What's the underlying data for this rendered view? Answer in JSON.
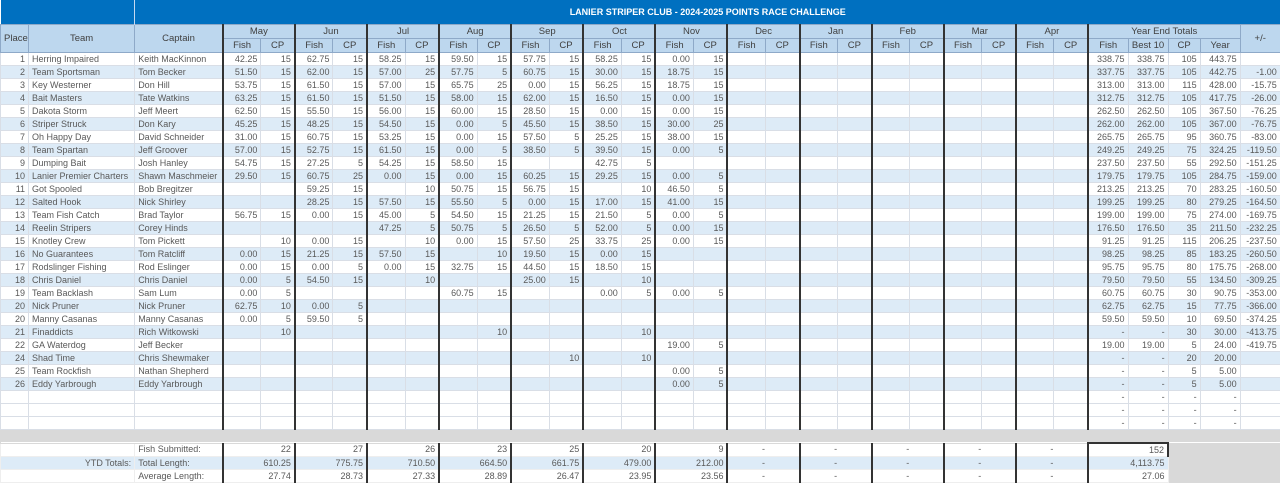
{
  "title": "LANIER STRIPER CLUB - 2024-2025 POINTS RACE CHALLENGE",
  "headers": {
    "place": "Place",
    "team": "Team",
    "captain": "Captain",
    "fish": "Fish",
    "cp": "CP",
    "totals": "Year End Totals",
    "best10": "Best 10",
    "year": "Year",
    "diff": "+/-"
  },
  "months": [
    "May",
    "Jun",
    "Jul",
    "Aug",
    "Sep",
    "Oct",
    "Nov",
    "Dec",
    "Jan",
    "Feb",
    "Mar",
    "Apr"
  ],
  "rows": [
    {
      "place": "1",
      "team": "Herring Impaired",
      "captain": "Keith MacKinnon",
      "m": [
        [
          "42.25",
          "15"
        ],
        [
          "62.75",
          "15"
        ],
        [
          "58.25",
          "15"
        ],
        [
          "59.50",
          "15"
        ],
        [
          "57.75",
          "15"
        ],
        [
          "58.25",
          "15"
        ],
        [
          "0.00",
          "15"
        ]
      ],
      "t": [
        "338.75",
        "338.75",
        "105",
        "443.75"
      ],
      "diff": ""
    },
    {
      "place": "2",
      "team": "Team Sportsman",
      "captain": "Tom Becker",
      "m": [
        [
          "51.50",
          "15"
        ],
        [
          "62.00",
          "15"
        ],
        [
          "57.00",
          "25"
        ],
        [
          "57.75",
          "5"
        ],
        [
          "60.75",
          "15"
        ],
        [
          "30.00",
          "15"
        ],
        [
          "18.75",
          "15"
        ]
      ],
      "t": [
        "337.75",
        "337.75",
        "105",
        "442.75"
      ],
      "diff": "-1.00"
    },
    {
      "place": "3",
      "team": "Key Westerner",
      "captain": "Don Hill",
      "m": [
        [
          "53.75",
          "15"
        ],
        [
          "61.50",
          "15"
        ],
        [
          "57.00",
          "15"
        ],
        [
          "65.75",
          "25"
        ],
        [
          "0.00",
          "15"
        ],
        [
          "56.25",
          "15"
        ],
        [
          "18.75",
          "15"
        ]
      ],
      "t": [
        "313.00",
        "313.00",
        "115",
        "428.00"
      ],
      "diff": "-15.75"
    },
    {
      "place": "4",
      "team": "Bait Masters",
      "captain": "Tate Watkins",
      "m": [
        [
          "63.25",
          "15"
        ],
        [
          "61.50",
          "15"
        ],
        [
          "51.50",
          "15"
        ],
        [
          "58.00",
          "15"
        ],
        [
          "62.00",
          "15"
        ],
        [
          "16.50",
          "15"
        ],
        [
          "0.00",
          "15"
        ]
      ],
      "t": [
        "312.75",
        "312.75",
        "105",
        "417.75"
      ],
      "diff": "-26.00"
    },
    {
      "place": "5",
      "team": "Dakota Storm",
      "captain": "Jeff Meert",
      "m": [
        [
          "62.50",
          "15"
        ],
        [
          "55.50",
          "15"
        ],
        [
          "56.00",
          "15"
        ],
        [
          "60.00",
          "15"
        ],
        [
          "28.50",
          "15"
        ],
        [
          "0.00",
          "15"
        ],
        [
          "0.00",
          "15"
        ]
      ],
      "t": [
        "262.50",
        "262.50",
        "105",
        "367.50"
      ],
      "diff": "-76.25"
    },
    {
      "place": "6",
      "team": "Striper Struck",
      "captain": "Don Kary",
      "m": [
        [
          "45.25",
          "15"
        ],
        [
          "48.25",
          "15"
        ],
        [
          "54.50",
          "15"
        ],
        [
          "0.00",
          "5"
        ],
        [
          "45.50",
          "15"
        ],
        [
          "38.50",
          "15"
        ],
        [
          "30.00",
          "25"
        ]
      ],
      "t": [
        "262.00",
        "262.00",
        "105",
        "367.00"
      ],
      "diff": "-76.75"
    },
    {
      "place": "7",
      "team": "Oh Happy Day",
      "captain": "David Schneider",
      "m": [
        [
          "31.00",
          "15"
        ],
        [
          "60.75",
          "15"
        ],
        [
          "53.25",
          "15"
        ],
        [
          "0.00",
          "15"
        ],
        [
          "57.50",
          "5"
        ],
        [
          "25.25",
          "15"
        ],
        [
          "38.00",
          "15"
        ]
      ],
      "t": [
        "265.75",
        "265.75",
        "95",
        "360.75"
      ],
      "diff": "-83.00"
    },
    {
      "place": "8",
      "team": "Team Spartan",
      "captain": "Jeff Groover",
      "m": [
        [
          "57.00",
          "15"
        ],
        [
          "52.75",
          "15"
        ],
        [
          "61.50",
          "15"
        ],
        [
          "0.00",
          "5"
        ],
        [
          "38.50",
          "5"
        ],
        [
          "39.50",
          "15"
        ],
        [
          "0.00",
          "5"
        ]
      ],
      "t": [
        "249.25",
        "249.25",
        "75",
        "324.25"
      ],
      "diff": "-119.50"
    },
    {
      "place": "9",
      "team": "Dumping Bait",
      "captain": "Josh Hanley",
      "m": [
        [
          "54.75",
          "15"
        ],
        [
          "27.25",
          "5"
        ],
        [
          "54.25",
          "15"
        ],
        [
          "58.50",
          "15"
        ],
        [
          "",
          ""
        ],
        [
          "42.75",
          "5"
        ],
        [
          "",
          ""
        ]
      ],
      "t": [
        "237.50",
        "237.50",
        "55",
        "292.50"
      ],
      "diff": "-151.25"
    },
    {
      "place": "10",
      "team": "Lanier Premier Charters",
      "captain": "Shawn Maschmeier",
      "m": [
        [
          "29.50",
          "15"
        ],
        [
          "60.75",
          "25"
        ],
        [
          "0.00",
          "15"
        ],
        [
          "0.00",
          "15"
        ],
        [
          "60.25",
          "15"
        ],
        [
          "29.25",
          "15"
        ],
        [
          "0.00",
          "5"
        ]
      ],
      "t": [
        "179.75",
        "179.75",
        "105",
        "284.75"
      ],
      "diff": "-159.00"
    },
    {
      "place": "11",
      "team": "Got Spooled",
      "captain": "Bob Bregitzer",
      "m": [
        [
          "",
          ""
        ],
        [
          "59.25",
          "15"
        ],
        [
          "",
          "10"
        ],
        [
          "50.75",
          "15"
        ],
        [
          "56.75",
          "15"
        ],
        [
          "",
          "10"
        ],
        [
          "46.50",
          "5"
        ]
      ],
      "t": [
        "213.25",
        "213.25",
        "70",
        "283.25"
      ],
      "diff": "-160.50"
    },
    {
      "place": "12",
      "team": "Salted Hook",
      "captain": "Nick Shirley",
      "m": [
        [
          "",
          ""
        ],
        [
          "28.25",
          "15"
        ],
        [
          "57.50",
          "15"
        ],
        [
          "55.50",
          "5"
        ],
        [
          "0.00",
          "15"
        ],
        [
          "17.00",
          "15"
        ],
        [
          "41.00",
          "15"
        ]
      ],
      "t": [
        "199.25",
        "199.25",
        "80",
        "279.25"
      ],
      "diff": "-164.50"
    },
    {
      "place": "13",
      "team": "Team Fish Catch",
      "captain": "Brad Taylor",
      "m": [
        [
          "56.75",
          "15"
        ],
        [
          "0.00",
          "15"
        ],
        [
          "45.00",
          "5"
        ],
        [
          "54.50",
          "15"
        ],
        [
          "21.25",
          "15"
        ],
        [
          "21.50",
          "5"
        ],
        [
          "0.00",
          "5"
        ]
      ],
      "t": [
        "199.00",
        "199.00",
        "75",
        "274.00"
      ],
      "diff": "-169.75"
    },
    {
      "place": "14",
      "team": "Reelin Stripers",
      "captain": "Corey Hinds",
      "m": [
        [
          "",
          ""
        ],
        [
          "",
          ""
        ],
        [
          "47.25",
          "5"
        ],
        [
          "50.75",
          "5"
        ],
        [
          "26.50",
          "5"
        ],
        [
          "52.00",
          "5"
        ],
        [
          "0.00",
          "15"
        ]
      ],
      "t": [
        "176.50",
        "176.50",
        "35",
        "211.50"
      ],
      "diff": "-232.25"
    },
    {
      "place": "15",
      "team": "Knotley Crew",
      "captain": "Tom Pickett",
      "m": [
        [
          "",
          "10"
        ],
        [
          "0.00",
          "15"
        ],
        [
          "",
          "10"
        ],
        [
          "0.00",
          "15"
        ],
        [
          "57.50",
          "25"
        ],
        [
          "33.75",
          "25"
        ],
        [
          "0.00",
          "15"
        ]
      ],
      "t": [
        "91.25",
        "91.25",
        "115",
        "206.25"
      ],
      "diff": "-237.50"
    },
    {
      "place": "16",
      "team": "No Guarantees",
      "captain": "Tom Ratcliff",
      "m": [
        [
          "0.00",
          "15"
        ],
        [
          "21.25",
          "15"
        ],
        [
          "57.50",
          "15"
        ],
        [
          "",
          "10"
        ],
        [
          "19.50",
          "15"
        ],
        [
          "0.00",
          "15"
        ],
        [
          "",
          ""
        ]
      ],
      "t": [
        "98.25",
        "98.25",
        "85",
        "183.25"
      ],
      "diff": "-260.50"
    },
    {
      "place": "17",
      "team": "Rodslinger Fishing",
      "captain": "Rod Eslinger",
      "m": [
        [
          "0.00",
          "15"
        ],
        [
          "0.00",
          "5"
        ],
        [
          "0.00",
          "15"
        ],
        [
          "32.75",
          "15"
        ],
        [
          "44.50",
          "15"
        ],
        [
          "18.50",
          "15"
        ],
        [
          "",
          ""
        ]
      ],
      "t": [
        "95.75",
        "95.75",
        "80",
        "175.75"
      ],
      "diff": "-268.00"
    },
    {
      "place": "18",
      "team": "Chris Daniel",
      "captain": "Chris Daniel",
      "m": [
        [
          "0.00",
          "5"
        ],
        [
          "54.50",
          "15"
        ],
        [
          "",
          "10"
        ],
        [
          "",
          ""
        ],
        [
          "25.00",
          "15"
        ],
        [
          "",
          "10"
        ],
        [
          "",
          ""
        ]
      ],
      "t": [
        "79.50",
        "79.50",
        "55",
        "134.50"
      ],
      "diff": "-309.25"
    },
    {
      "place": "19",
      "team": "Team Backlash",
      "captain": "Sam Lum",
      "m": [
        [
          "0.00",
          "5"
        ],
        [
          "",
          ""
        ],
        [
          "",
          ""
        ],
        [
          "60.75",
          "15"
        ],
        [
          "",
          ""
        ],
        [
          "0.00",
          "5"
        ],
        [
          "0.00",
          "5"
        ]
      ],
      "t": [
        "60.75",
        "60.75",
        "30",
        "90.75"
      ],
      "diff": "-353.00"
    },
    {
      "place": "20",
      "team": "Nick Pruner",
      "captain": "Nick Pruner",
      "m": [
        [
          "62.75",
          "10"
        ],
        [
          "0.00",
          "5"
        ],
        [
          "",
          ""
        ],
        [
          "",
          ""
        ],
        [
          "",
          ""
        ],
        [
          "",
          ""
        ],
        [
          "",
          ""
        ]
      ],
      "t": [
        "62.75",
        "62.75",
        "15",
        "77.75"
      ],
      "diff": "-366.00"
    },
    {
      "place": "20",
      "team": "Manny Casanas",
      "captain": "Manny Casanas",
      "m": [
        [
          "0.00",
          "5"
        ],
        [
          "59.50",
          "5"
        ],
        [
          "",
          ""
        ],
        [
          "",
          ""
        ],
        [
          "",
          ""
        ],
        [
          "",
          ""
        ],
        [
          "",
          ""
        ]
      ],
      "t": [
        "59.50",
        "59.50",
        "10",
        "69.50"
      ],
      "diff": "-374.25"
    },
    {
      "place": "21",
      "team": "Finaddicts",
      "captain": "Rich Witkowski",
      "m": [
        [
          "",
          "10"
        ],
        [
          "",
          ""
        ],
        [
          "",
          ""
        ],
        [
          "",
          "10"
        ],
        [
          "",
          ""
        ],
        [
          "",
          "10"
        ],
        [
          "",
          ""
        ]
      ],
      "t": [
        "-",
        "-",
        "30",
        "30.00"
      ],
      "diff": "-413.75"
    },
    {
      "place": "22",
      "team": "GA Waterdog",
      "captain": "Jeff Becker",
      "m": [
        [
          "",
          ""
        ],
        [
          "",
          ""
        ],
        [
          "",
          ""
        ],
        [
          "",
          ""
        ],
        [
          "",
          ""
        ],
        [
          "",
          ""
        ],
        [
          "19.00",
          "5"
        ]
      ],
      "t": [
        "19.00",
        "19.00",
        "5",
        "24.00"
      ],
      "diff": "-419.75"
    },
    {
      "place": "24",
      "team": "Shad Time",
      "captain": "Chris Shewmaker",
      "m": [
        [
          "",
          ""
        ],
        [
          "",
          ""
        ],
        [
          "",
          ""
        ],
        [
          "",
          ""
        ],
        [
          "",
          "10"
        ],
        [
          "",
          "10"
        ],
        [
          "",
          ""
        ]
      ],
      "t": [
        "-",
        "-",
        "20",
        "20.00"
      ],
      "diff": ""
    },
    {
      "place": "25",
      "team": "Team Rockfish",
      "captain": "Nathan Shepherd",
      "m": [
        [
          "",
          ""
        ],
        [
          "",
          ""
        ],
        [
          "",
          ""
        ],
        [
          "",
          ""
        ],
        [
          "",
          ""
        ],
        [
          "",
          ""
        ],
        [
          "0.00",
          "5"
        ]
      ],
      "t": [
        "-",
        "-",
        "5",
        "5.00"
      ],
      "diff": ""
    },
    {
      "place": "26",
      "team": "Eddy Yarbrough",
      "captain": "Eddy Yarbrough",
      "m": [
        [
          "",
          ""
        ],
        [
          "",
          ""
        ],
        [
          "",
          ""
        ],
        [
          "",
          ""
        ],
        [
          "",
          ""
        ],
        [
          "",
          ""
        ],
        [
          "0.00",
          "5"
        ]
      ],
      "t": [
        "-",
        "-",
        "5",
        "5.00"
      ],
      "diff": ""
    }
  ],
  "empty_totals": [
    "-",
    "-",
    "-",
    "-"
  ],
  "footer": {
    "label": "YTD Totals:",
    "rows": [
      {
        "label": "Fish Submitted:",
        "values": [
          "22",
          "27",
          "26",
          "23",
          "25",
          "20",
          "9",
          "-",
          "-",
          "-",
          "-",
          "-"
        ],
        "total": "152"
      },
      {
        "label": "Total Length:",
        "values": [
          "610.25",
          "775.75",
          "710.50",
          "664.50",
          "661.75",
          "479.00",
          "212.00",
          "-",
          "-",
          "-",
          "-",
          "-"
        ],
        "total": "4,113.75"
      },
      {
        "label": "Average Length:",
        "values": [
          "27.74",
          "28.73",
          "27.33",
          "28.89",
          "26.47",
          "23.95",
          "23.56",
          "-",
          "-",
          "-",
          "-",
          "-"
        ],
        "total": "27.06"
      }
    ]
  }
}
